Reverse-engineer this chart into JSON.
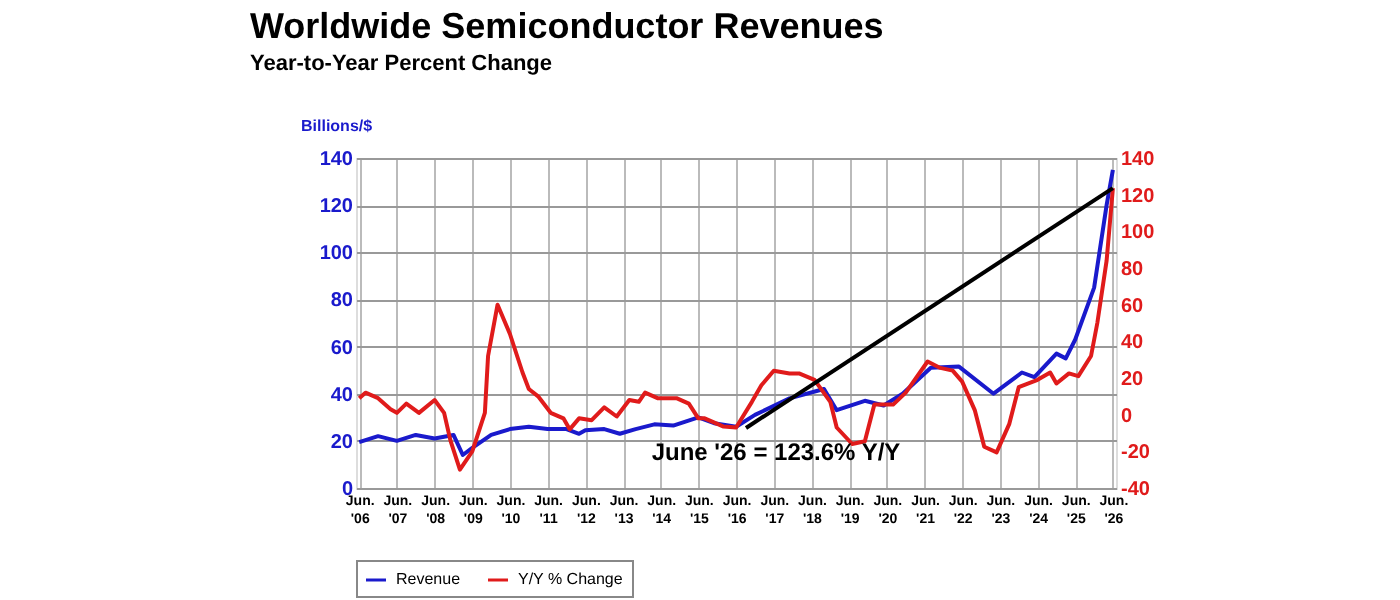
{
  "chart_data": {
    "type": "line",
    "title": "Worldwide Semiconductor Revenues",
    "subtitle": "Year-to-Year Percent Change",
    "ylabel": "Billions/$",
    "xlim": [
      "2006-05",
      "2026-07"
    ],
    "xticks": [
      {
        "value": "2006-06",
        "label": "Jun. '06"
      },
      {
        "value": "2007-06",
        "label": "Jun. '07"
      },
      {
        "value": "2008-06",
        "label": "Jun. '08"
      },
      {
        "value": "2009-06",
        "label": "Jun. '09"
      },
      {
        "value": "2010-06",
        "label": "Jun. '10"
      },
      {
        "value": "2011-06",
        "label": "Jun. '11"
      },
      {
        "value": "2012-06",
        "label": "Jun. '12"
      },
      {
        "value": "2013-06",
        "label": "Jun. '13"
      },
      {
        "value": "2014-06",
        "label": "Jun. '14"
      },
      {
        "value": "2015-06",
        "label": "Jun. '15"
      },
      {
        "value": "2016-06",
        "label": "Jun. '16"
      },
      {
        "value": "2017-06",
        "label": "Jun. '17"
      },
      {
        "value": "2018-06",
        "label": "Jun. '18"
      },
      {
        "value": "2019-06",
        "label": "Jun. '19"
      },
      {
        "value": "2020-06",
        "label": "Jun. '20"
      },
      {
        "value": "2021-06",
        "label": "Jun. '21"
      },
      {
        "value": "2022-06",
        "label": "Jun. '22"
      },
      {
        "value": "2023-06",
        "label": "Jun. '23"
      },
      {
        "value": "2024-06",
        "label": "Jun. '24"
      },
      {
        "value": "2025-06",
        "label": "Jun. '25"
      },
      {
        "value": "2026-06",
        "label": "Jun. '26"
      }
    ],
    "ylim": [
      0,
      140
    ],
    "yticks": [
      0,
      20,
      40,
      60,
      80,
      100,
      120,
      140
    ],
    "y2lim": [
      -40,
      140
    ],
    "y2ticks": [
      -40,
      -20,
      0,
      20,
      40,
      60,
      80,
      100,
      120,
      140
    ],
    "grid": true,
    "legend": "bottom",
    "marker": "none",
    "line_style": "solid",
    "annotations": [
      {
        "text": "June '26 = 123.6% Y/Y",
        "x": "2026-06",
        "y": 123.6
      }
    ],
    "series": [
      {
        "name": "Revenue",
        "color": "#1a1acc",
        "x": [
          "2006-06",
          "2006-12",
          "2007-06",
          "2007-12",
          "2008-06",
          "2008-12",
          "2009-03",
          "2009-06",
          "2009-12",
          "2010-06",
          "2010-12",
          "2011-06",
          "2011-12",
          "2012-04",
          "2012-06",
          "2012-12",
          "2013-05",
          "2013-10",
          "2014-04",
          "2014-10",
          "2015-06",
          "2015-11",
          "2016-06",
          "2016-12",
          "2017-11",
          "2018-10",
          "2019-02",
          "2019-11",
          "2020-05",
          "2020-11",
          "2021-08",
          "2022-05",
          "2023-04",
          "2024-01",
          "2024-05",
          "2024-12",
          "2025-03",
          "2025-06",
          "2025-12",
          "2026-04",
          "2026-06"
        ],
        "values": [
          19.5,
          22,
          20,
          22.5,
          21,
          22.5,
          14,
          17,
          22.5,
          25,
          26,
          25,
          25,
          23,
          24.5,
          25,
          23,
          25,
          27,
          26.5,
          30,
          27.5,
          26,
          31,
          38,
          42,
          33,
          37,
          35,
          40,
          51,
          51.5,
          40,
          49,
          47,
          57,
          55,
          63,
          85,
          120,
          135
        ]
      },
      {
        "name": "Y/Y % Change",
        "color": "#e01b1b",
        "axis": "y2",
        "x": [
          "2006-06",
          "2006-08",
          "2006-12",
          "2007-04",
          "2007-06",
          "2007-09",
          "2008-01",
          "2008-06",
          "2008-09",
          "2008-11",
          "2009-02",
          "2009-06",
          "2009-10",
          "2009-11",
          "2010-02",
          "2010-06",
          "2010-10",
          "2010-12",
          "2011-03",
          "2011-07",
          "2011-11",
          "2012-01",
          "2012-04",
          "2012-08",
          "2012-12",
          "2013-04",
          "2013-08",
          "2013-11",
          "2014-01",
          "2014-05",
          "2014-11",
          "2015-03",
          "2015-06",
          "2015-08",
          "2016-02",
          "2016-06",
          "2016-11",
          "2017-02",
          "2017-06",
          "2017-11",
          "2018-02",
          "2018-07",
          "2018-12",
          "2019-02",
          "2019-07",
          "2019-11",
          "2020-02",
          "2020-08",
          "2020-12",
          "2021-07",
          "2021-11",
          "2022-03",
          "2022-06",
          "2022-10",
          "2023-01",
          "2023-05",
          "2023-09",
          "2023-12",
          "2024-06",
          "2024-10",
          "2024-12",
          "2025-04",
          "2025-07",
          "2025-11",
          "2026-01",
          "2026-04",
          "2026-06"
        ],
        "values": [
          9,
          12,
          9,
          3,
          1,
          6,
          1,
          8,
          1,
          -14,
          -30,
          -20,
          1,
          32,
          60,
          44,
          23,
          14,
          10,
          1,
          -2,
          -8,
          -2,
          -3,
          4,
          -1,
          8,
          7,
          12,
          9,
          9,
          6,
          -2,
          -2,
          -6.5,
          -7,
          7,
          16,
          24,
          22.5,
          22.5,
          19,
          7,
          -7,
          -16,
          -14.5,
          5.5,
          5.5,
          12,
          29,
          25.5,
          24,
          18,
          2.5,
          -17.5,
          -20.6,
          -5,
          15,
          19,
          23,
          17,
          22.5,
          21,
          32,
          50,
          84,
          123.6
        ]
      }
    ]
  }
}
